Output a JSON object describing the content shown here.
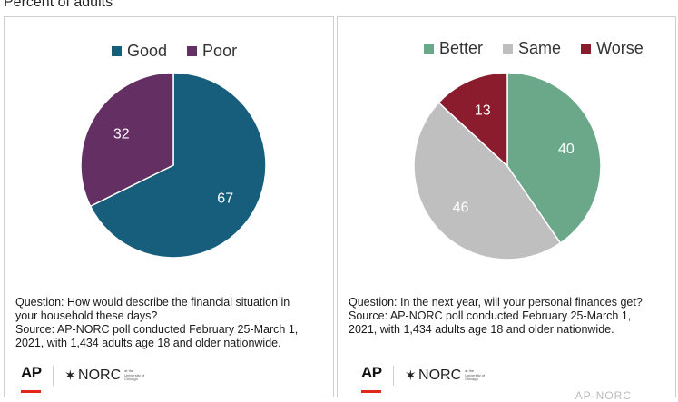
{
  "header": {
    "subtitle": "Percent of adults"
  },
  "colors": {
    "good": "#175e7d",
    "poor": "#642f63",
    "better": "#6aa889",
    "same": "#bfbfbf",
    "worse": "#8a1c2e",
    "label_text": "#ffffff"
  },
  "chart_data": [
    {
      "type": "pie",
      "title": "",
      "legend_position": "top",
      "slices": [
        {
          "label": "Good",
          "value": 67
        },
        {
          "label": "Poor",
          "value": 32
        }
      ],
      "question": [
        "Question: How would describe the financial situation in",
        "your household these days?"
      ],
      "source": [
        "Source: AP-NORC poll conducted February 25-March 1,",
        "2021, with 1,434 adults age 18 and older nationwide."
      ]
    },
    {
      "type": "pie",
      "title": "",
      "legend_position": "top",
      "slices": [
        {
          "label": "Better",
          "value": 40
        },
        {
          "label": "Same",
          "value": 46
        },
        {
          "label": "Worse",
          "value": 13
        }
      ],
      "question": [
        "Question: In the next year, will your personal finances get?"
      ],
      "source": [
        "Source: AP-NORC poll conducted February 25-March 1,",
        "2021, with 1,434 adults age 18 and older nationwide."
      ]
    }
  ],
  "logos": {
    "ap": "AP",
    "norc": "NORC",
    "norc_star": "✶",
    "norc_tagline": [
      "at the",
      "University of",
      "Chicago"
    ]
  },
  "watermark": "AP-NORC"
}
